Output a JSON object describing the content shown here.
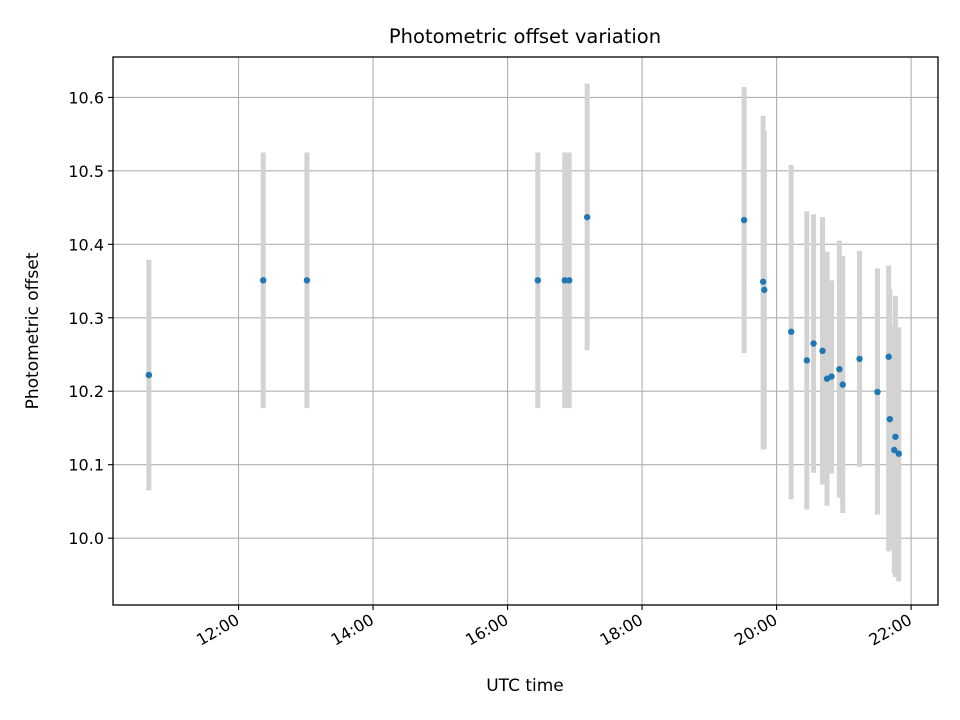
{
  "chart_data": {
    "type": "scatter",
    "title": "Photometric offset variation",
    "xlabel": "UTC time",
    "ylabel": "Photometric offset",
    "x_axis_kind": "time",
    "x_ticks": [
      "12:00",
      "14:00",
      "16:00",
      "18:00",
      "20:00",
      "22:00"
    ],
    "y_ticks": [
      "10.0",
      "10.1",
      "10.2",
      "10.3",
      "10.4",
      "10.5",
      "10.6"
    ],
    "xlim": [
      "10:08",
      "22:24"
    ],
    "ylim": [
      9.909,
      10.655
    ],
    "grid": true,
    "colors": {
      "point": "#1f77b4",
      "errorbar": "#d3d3d3",
      "grid": "#b0b0b0"
    },
    "points": [
      {
        "x": "10:40",
        "y": 10.222,
        "err_low": 10.065,
        "err_high": 10.379
      },
      {
        "x": "12:22",
        "y": 10.351,
        "err_low": 10.177,
        "err_high": 10.525
      },
      {
        "x": "13:01",
        "y": 10.351,
        "err_low": 10.177,
        "err_high": 10.525
      },
      {
        "x": "16:27",
        "y": 10.351,
        "err_low": 10.177,
        "err_high": 10.525
      },
      {
        "x": "16:51",
        "y": 10.351,
        "err_low": 10.177,
        "err_high": 10.525
      },
      {
        "x": "16:55",
        "y": 10.351,
        "err_low": 10.177,
        "err_high": 10.525
      },
      {
        "x": "17:11",
        "y": 10.437,
        "err_low": 10.256,
        "err_high": 10.619
      },
      {
        "x": "19:31",
        "y": 10.433,
        "err_low": 10.252,
        "err_high": 10.614
      },
      {
        "x": "19:48",
        "y": 10.349,
        "err_low": 10.121,
        "err_high": 10.575
      },
      {
        "x": "19:49",
        "y": 10.338,
        "err_low": 10.121,
        "err_high": 10.555
      },
      {
        "x": "20:13",
        "y": 10.281,
        "err_low": 10.053,
        "err_high": 10.508
      },
      {
        "x": "20:27",
        "y": 10.242,
        "err_low": 10.039,
        "err_high": 10.445
      },
      {
        "x": "20:33",
        "y": 10.265,
        "err_low": 10.089,
        "err_high": 10.441
      },
      {
        "x": "20:41",
        "y": 10.255,
        "err_low": 10.073,
        "err_high": 10.437
      },
      {
        "x": "20:45",
        "y": 10.217,
        "err_low": 10.044,
        "err_high": 10.39
      },
      {
        "x": "20:49",
        "y": 10.22,
        "err_low": 10.088,
        "err_high": 10.351
      },
      {
        "x": "20:56",
        "y": 10.23,
        "err_low": 10.055,
        "err_high": 10.405
      },
      {
        "x": "20:59",
        "y": 10.209,
        "err_low": 10.034,
        "err_high": 10.384
      },
      {
        "x": "21:14",
        "y": 10.244,
        "err_low": 10.097,
        "err_high": 10.391
      },
      {
        "x": "21:30",
        "y": 10.199,
        "err_low": 10.032,
        "err_high": 10.367
      },
      {
        "x": "21:40",
        "y": 10.247,
        "err_low": 9.982,
        "err_high": 10.371
      },
      {
        "x": "21:41",
        "y": 10.162,
        "err_low": 9.986,
        "err_high": 10.339
      },
      {
        "x": "21:45",
        "y": 10.12,
        "err_low": 9.952,
        "err_high": 10.289
      },
      {
        "x": "21:46",
        "y": 10.138,
        "err_low": 9.947,
        "err_high": 10.33
      },
      {
        "x": "21:49",
        "y": 10.115,
        "err_low": 9.941,
        "err_high": 10.287
      }
    ]
  }
}
